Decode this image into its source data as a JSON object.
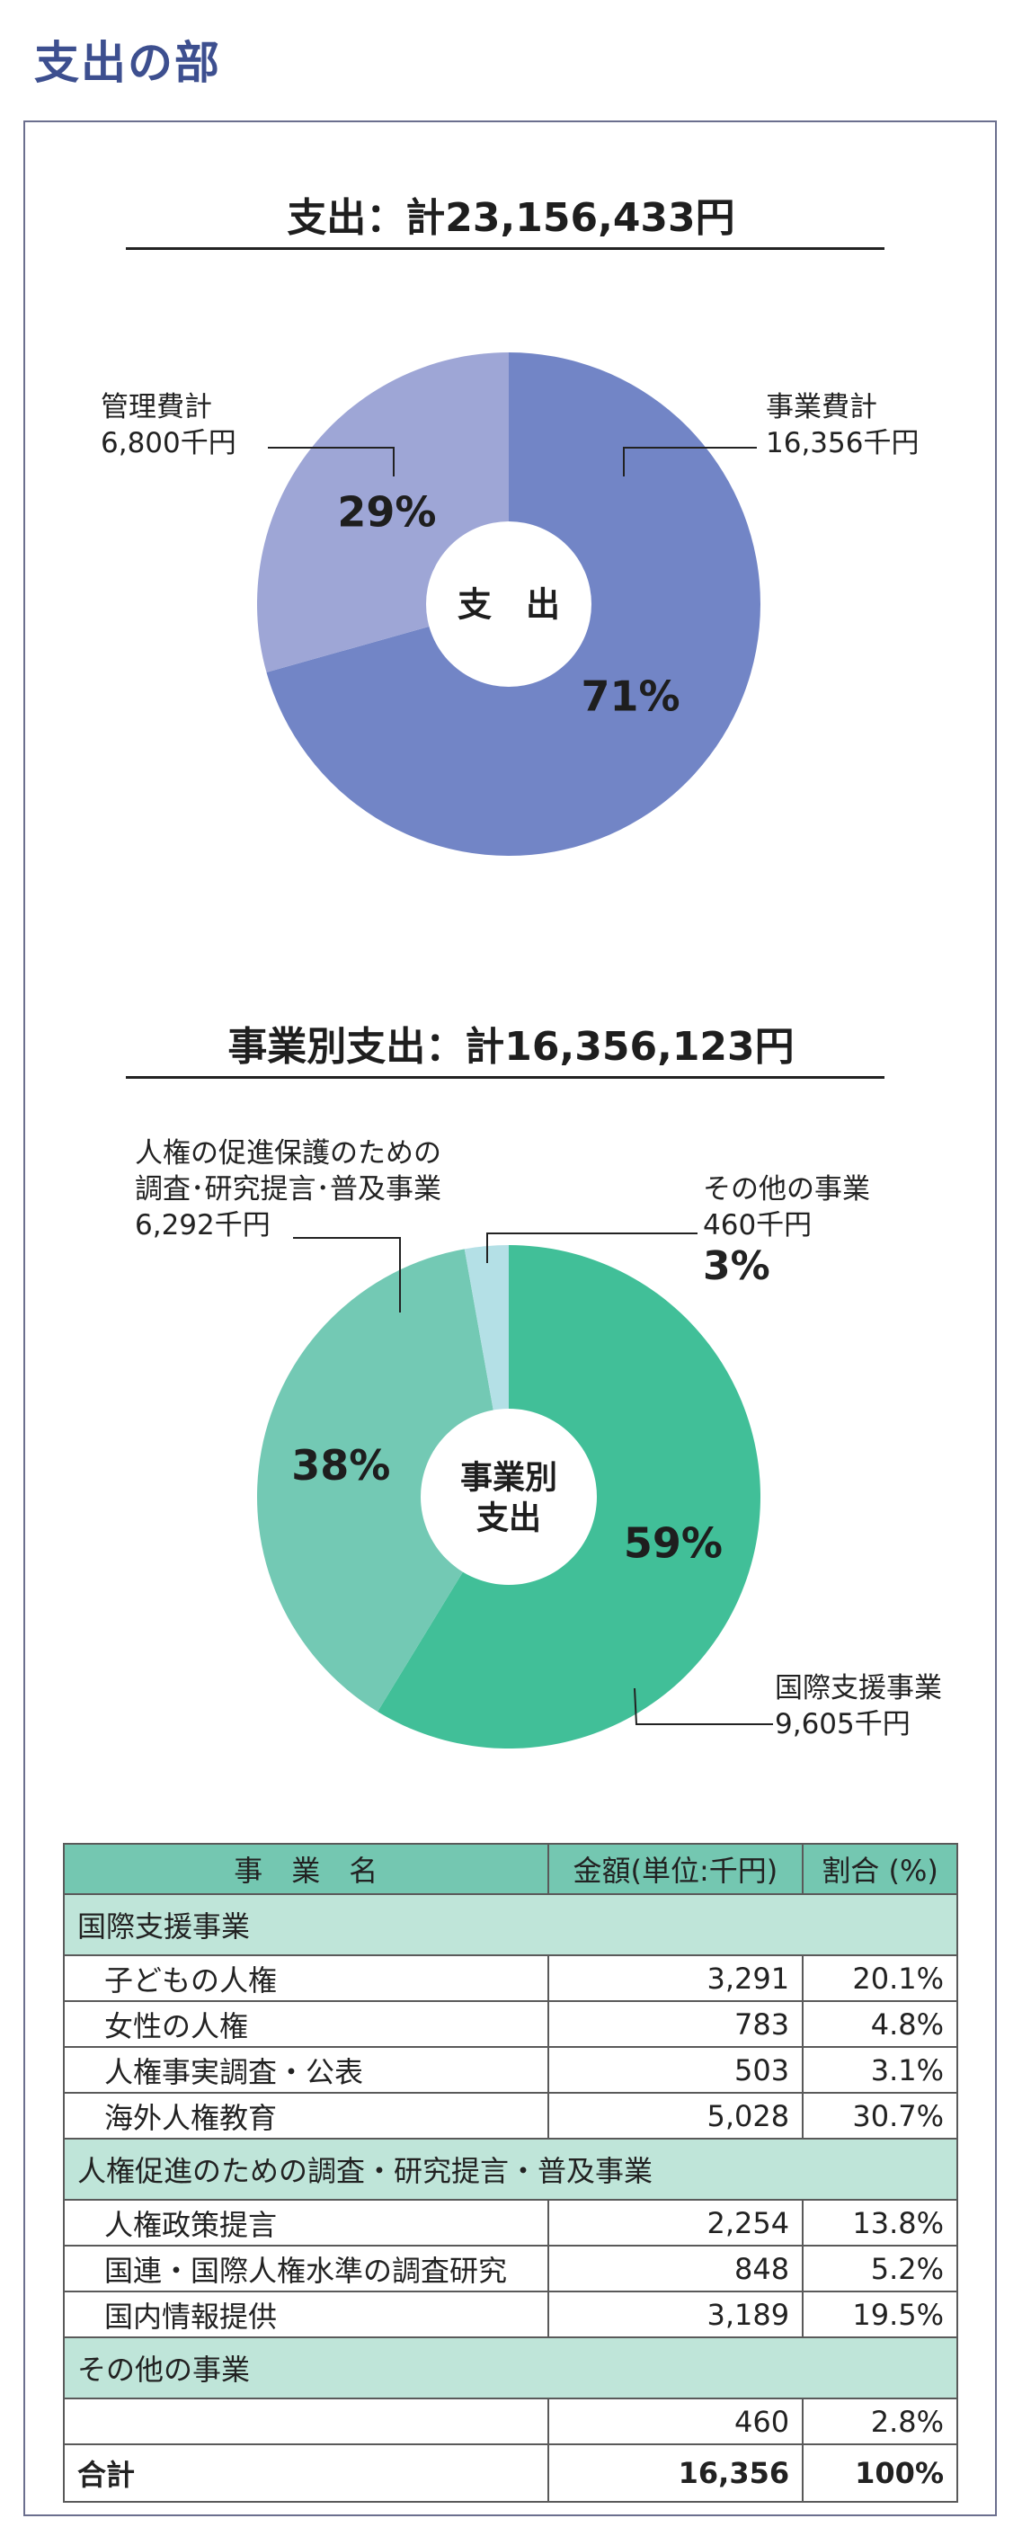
{
  "page_title": "支出の部",
  "chart_data": [
    {
      "type": "pie",
      "title": "支出：計23,156,433円",
      "center_label": "支　出",
      "slices": [
        {
          "name_lines": [
            "事業費計",
            "16,356千円"
          ],
          "value": 16356,
          "percent_label": "71%",
          "color": "#7285c6"
        },
        {
          "name_lines": [
            "管理費計",
            "6,800千円"
          ],
          "value": 6800,
          "percent_label": "29%",
          "color": "#9ea6d6"
        }
      ]
    },
    {
      "type": "pie",
      "title": "事業別支出：計16,356,123円",
      "center_label_lines": [
        "事業別",
        "支出"
      ],
      "slices": [
        {
          "name_lines": [
            "国際支援事業",
            "9,605千円"
          ],
          "value": 9605,
          "percent_label": "59%",
          "color": "#41bf98"
        },
        {
          "name_lines": [
            "人権の促進保護のための",
            "調査･研究提言･普及事業",
            "6,292千円"
          ],
          "value": 6292,
          "percent_label": "38%",
          "color": "#73c9b4"
        },
        {
          "name_lines": [
            "その他の事業",
            "460千円"
          ],
          "value": 460,
          "percent_label": "3%",
          "color": "#b4e0e6"
        }
      ]
    }
  ],
  "table": {
    "headers": [
      "事　業　名",
      "金額(単位:千円)",
      "割合 (%)"
    ],
    "groups": [
      {
        "name": "国際支援事業",
        "rows": [
          {
            "name": "子どもの人権",
            "amount": "3,291",
            "ratio": "20.1%"
          },
          {
            "name": "女性の人権",
            "amount": "783",
            "ratio": "4.8%"
          },
          {
            "name": "人権事実調査・公表",
            "amount": "503",
            "ratio": "3.1%"
          },
          {
            "name": "海外人権教育",
            "amount": "5,028",
            "ratio": "30.7%"
          }
        ]
      },
      {
        "name": "人権促進のための調査・研究提言・普及事業",
        "rows": [
          {
            "name": "人権政策提言",
            "amount": "2,254",
            "ratio": "13.8%"
          },
          {
            "name": "国連・国際人権水準の調査研究",
            "amount": "848",
            "ratio": "5.2%"
          },
          {
            "name": "国内情報提供",
            "amount": "3,189",
            "ratio": "19.5%"
          }
        ]
      },
      {
        "name": "その他の事業",
        "rows": [
          {
            "name": "",
            "amount": "460",
            "ratio": "2.8%"
          }
        ]
      }
    ],
    "total": {
      "name": "合計",
      "amount": "16,356",
      "ratio": "100%"
    }
  }
}
